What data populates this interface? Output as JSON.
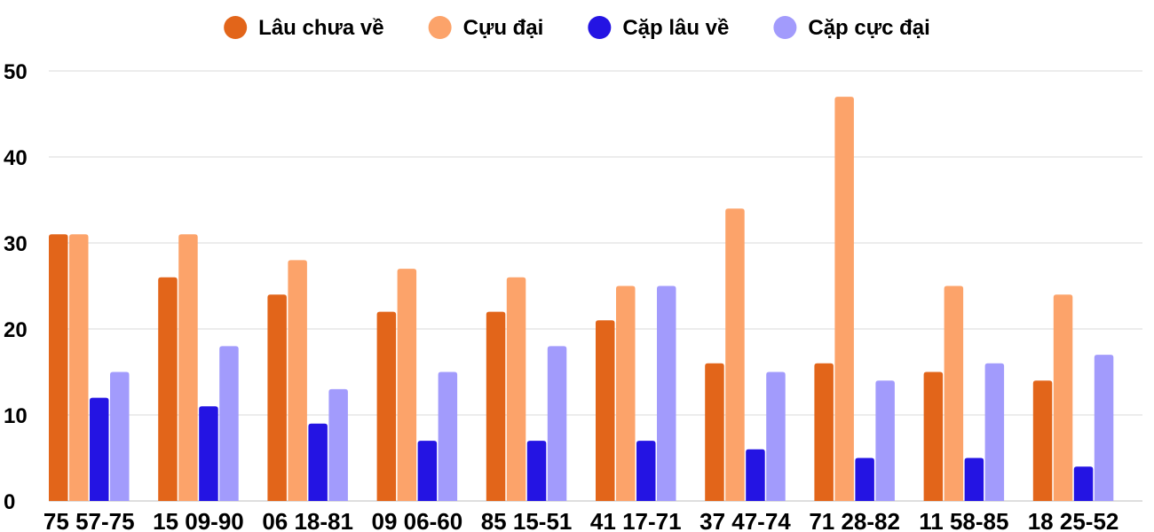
{
  "chart_data": {
    "type": "bar",
    "categories": [
      "75 57-75",
      "15 09-90",
      "06 18-81",
      "09 06-60",
      "85 15-51",
      "41 17-71",
      "37 47-74",
      "71 28-82",
      "11 58-85",
      "18 25-52"
    ],
    "series": [
      {
        "name": "Lâu chưa về",
        "color": "#e2651a",
        "values": [
          31,
          26,
          24,
          22,
          22,
          21,
          16,
          16,
          15,
          14
        ]
      },
      {
        "name": "Cựu đại",
        "color": "#fca36a",
        "values": [
          31,
          31,
          28,
          27,
          26,
          25,
          34,
          47,
          25,
          24
        ]
      },
      {
        "name": "Cặp lâu về",
        "color": "#2414e3",
        "values": [
          12,
          11,
          9,
          7,
          7,
          7,
          6,
          5,
          5,
          4
        ]
      },
      {
        "name": "Cặp cực đại",
        "color": "#a29bfc",
        "values": [
          15,
          18,
          13,
          15,
          18,
          25,
          15,
          14,
          16,
          17
        ]
      }
    ],
    "yticks": [
      "0",
      "10",
      "20",
      "30",
      "40",
      "50"
    ],
    "ylim": [
      0,
      50
    ],
    "grid": true,
    "legend": "top-center"
  }
}
